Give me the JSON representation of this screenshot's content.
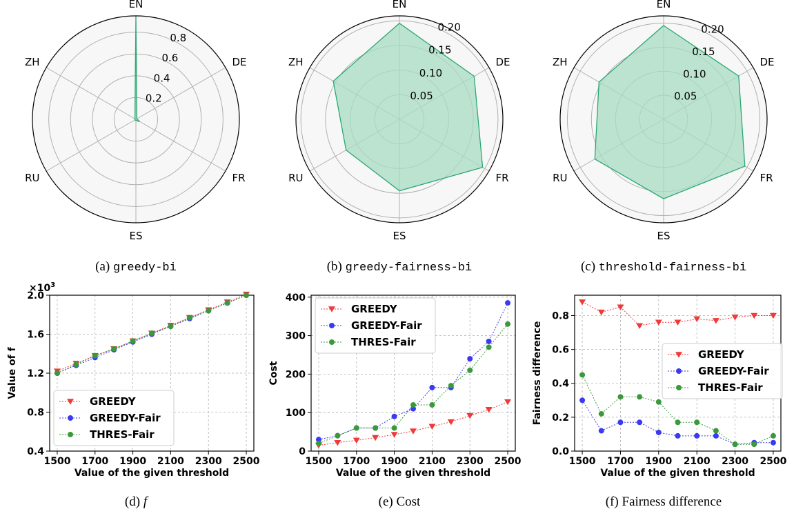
{
  "colors": {
    "fill": "#a8dcc3",
    "outline": "#2aa774",
    "panel_bg": "#f7f7f7",
    "grid": "#b0b0b0",
    "greedy": "#f03a3a",
    "greedy_fair": "#3a3af0",
    "thres_fair": "#3a9a3a"
  },
  "captions": [
    {
      "prefix": "(a) ",
      "name": "greedy-bi",
      "style": "mono"
    },
    {
      "prefix": "(b) ",
      "name": "greedy-fairness-bi",
      "style": "mono"
    },
    {
      "prefix": "(c) ",
      "name": "threshold-fairness-bi",
      "style": "mono"
    },
    {
      "prefix": "(d) ",
      "name": "f",
      "style": "italic"
    },
    {
      "prefix": "(e) ",
      "name": "Cost",
      "style": "plain"
    },
    {
      "prefix": "(f) ",
      "name": "Fairness difference",
      "style": "plain"
    }
  ],
  "chart_data": [
    {
      "type": "radar",
      "axes": [
        "EN",
        "DE",
        "FR",
        "ES",
        "RU",
        "ZH"
      ],
      "rmax": 0.95,
      "rticks": [
        0.2,
        0.4,
        0.6,
        0.8
      ],
      "rtick_labels": [
        "0.2",
        "0.4",
        "0.6",
        "0.8"
      ],
      "values": [
        0.95,
        0.01,
        0.04,
        0.01,
        0.01,
        0.01
      ]
    },
    {
      "type": "radar",
      "axes": [
        "EN",
        "DE",
        "FR",
        "ES",
        "RU",
        "ZH"
      ],
      "rmax": 0.21,
      "rticks": [
        0.05,
        0.1,
        0.15,
        0.2
      ],
      "rtick_labels": [
        "0.05",
        "0.10",
        "0.15",
        "0.20"
      ],
      "values": [
        0.195,
        0.175,
        0.195,
        0.145,
        0.125,
        0.155
      ]
    },
    {
      "type": "radar",
      "axes": [
        "EN",
        "DE",
        "FR",
        "ES",
        "RU",
        "ZH"
      ],
      "rmax": 0.215,
      "rticks": [
        0.05,
        0.1,
        0.15,
        0.2
      ],
      "rtick_labels": [
        "0.05",
        "0.10",
        "0.15",
        "0.20"
      ],
      "values": [
        0.195,
        0.18,
        0.195,
        0.165,
        0.165,
        0.155
      ]
    },
    {
      "type": "line",
      "x": [
        1500,
        1600,
        1700,
        1800,
        1900,
        2000,
        2100,
        2200,
        2300,
        2400,
        2500
      ],
      "xticks": [
        1500,
        1700,
        1900,
        2100,
        2300,
        2500
      ],
      "xlim": [
        1460,
        2540
      ],
      "xlabel": "Value of the given threshold",
      "ylabel": "Value of f",
      "ylim": [
        0.4,
        2.0
      ],
      "yticks": [
        0.4,
        0.8,
        1.2,
        1.6,
        2.0
      ],
      "ytick_labels": [
        "0.4",
        "0.8",
        "1.2",
        "1.6",
        "2.0"
      ],
      "y_multiplier": "×10",
      "y_multiplier_exp": "3",
      "legend": "bottom-left",
      "series": [
        {
          "name": "GREEDY",
          "marker": "triangle-down",
          "color": "#f03a3a",
          "values": [
            1.22,
            1.3,
            1.38,
            1.45,
            1.53,
            1.61,
            1.69,
            1.77,
            1.85,
            1.93,
            2.01
          ]
        },
        {
          "name": "GREEDY-Fair",
          "marker": "circle",
          "color": "#3a3af0",
          "values": [
            1.2,
            1.28,
            1.36,
            1.44,
            1.52,
            1.6,
            1.68,
            1.76,
            1.84,
            1.92,
            2.0
          ]
        },
        {
          "name": "THRES-Fair",
          "marker": "circle",
          "color": "#3a9a3a",
          "values": [
            1.2,
            1.29,
            1.38,
            1.45,
            1.53,
            1.61,
            1.68,
            1.77,
            1.84,
            1.92,
            2.0
          ]
        }
      ]
    },
    {
      "type": "line",
      "x": [
        1500,
        1600,
        1700,
        1800,
        1900,
        2000,
        2100,
        2200,
        2300,
        2400,
        2500
      ],
      "xticks": [
        1500,
        1700,
        1900,
        2100,
        2300,
        2500
      ],
      "xlim": [
        1460,
        2540
      ],
      "xlabel": "Value of the given threshold",
      "ylabel": "Cost",
      "ylim": [
        0,
        405
      ],
      "yticks": [
        0,
        100,
        200,
        300,
        400
      ],
      "ytick_labels": [
        "0",
        "100",
        "200",
        "300",
        "400"
      ],
      "legend": "top-left",
      "series": [
        {
          "name": "GREEDY",
          "marker": "triangle-down",
          "color": "#f03a3a",
          "values": [
            15,
            22,
            28,
            35,
            43,
            52,
            64,
            76,
            92,
            108,
            128
          ]
        },
        {
          "name": "GREEDY-Fair",
          "marker": "circle",
          "color": "#3a3af0",
          "values": [
            30,
            40,
            60,
            60,
            90,
            110,
            165,
            165,
            240,
            285,
            385
          ]
        },
        {
          "name": "THRES-Fair",
          "marker": "circle",
          "color": "#3a9a3a",
          "values": [
            20,
            40,
            60,
            60,
            60,
            120,
            120,
            170,
            210,
            270,
            330
          ]
        }
      ]
    },
    {
      "type": "line",
      "x": [
        1500,
        1600,
        1700,
        1800,
        1900,
        2000,
        2100,
        2200,
        2300,
        2400,
        2500
      ],
      "xticks": [
        1500,
        1700,
        1900,
        2100,
        2300,
        2500
      ],
      "xlim": [
        1460,
        2540
      ],
      "xlabel": "Value of the given threshold",
      "ylabel": "Fairness difference",
      "ylim": [
        0,
        0.92
      ],
      "yticks": [
        0.0,
        0.2,
        0.4,
        0.6,
        0.8
      ],
      "ytick_labels": [
        "0.0",
        "0.2",
        "0.4",
        "0.6",
        "0.8"
      ],
      "legend": "center-right",
      "series": [
        {
          "name": "GREEDY",
          "marker": "triangle-down",
          "color": "#f03a3a",
          "values": [
            0.88,
            0.82,
            0.85,
            0.74,
            0.76,
            0.76,
            0.78,
            0.77,
            0.79,
            0.8,
            0.8
          ]
        },
        {
          "name": "GREEDY-Fair",
          "marker": "circle",
          "color": "#3a3af0",
          "values": [
            0.3,
            0.12,
            0.17,
            0.17,
            0.11,
            0.09,
            0.09,
            0.09,
            0.04,
            0.05,
            0.05
          ]
        },
        {
          "name": "THRES-Fair",
          "marker": "circle",
          "color": "#3a9a3a",
          "values": [
            0.45,
            0.22,
            0.32,
            0.32,
            0.29,
            0.17,
            0.17,
            0.12,
            0.04,
            0.04,
            0.09
          ]
        }
      ]
    }
  ]
}
